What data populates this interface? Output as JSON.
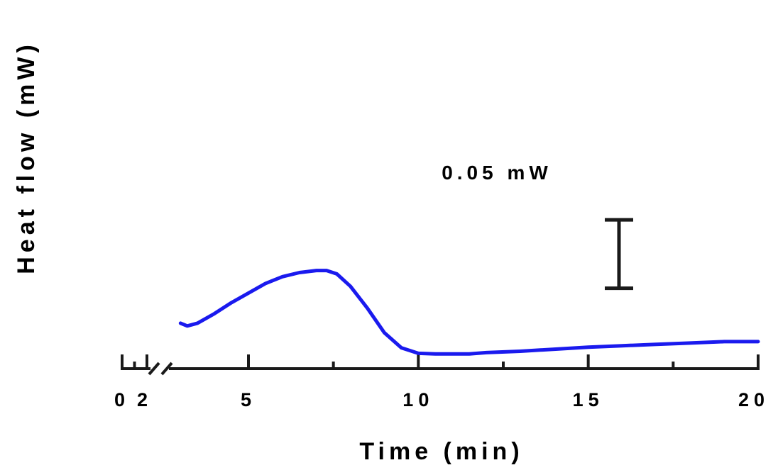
{
  "chart_data": {
    "type": "line",
    "title": "",
    "xlabel": "Time (min)",
    "ylabel": "Heat flow (mW)",
    "x_ticks": [
      {
        "value": 0,
        "label": "0"
      },
      {
        "value": 2,
        "label": "2"
      },
      {
        "value": 5,
        "label": "5"
      },
      {
        "value": 10,
        "label": "10"
      },
      {
        "value": 15,
        "label": "15"
      },
      {
        "value": 20,
        "label": "20"
      }
    ],
    "x_axis_break": [
      2,
      3
    ],
    "xlim": [
      0,
      20
    ],
    "ylim": [
      -0.004,
      0.104
    ],
    "grid": false,
    "legend": "none",
    "scale_bar": {
      "label": "0.05 mW",
      "value": 0.05,
      "from": 0.0525,
      "to": 0.1025
    },
    "series": [
      {
        "color": "#1a1aee",
        "x": [
          3.0,
          3.2,
          3.5,
          4.0,
          4.5,
          5.0,
          5.5,
          6.0,
          6.5,
          7.0,
          7.3,
          7.6,
          8.0,
          8.5,
          9.0,
          9.5,
          10.0,
          10.5,
          11.0,
          11.5,
          12.0,
          13.0,
          14.0,
          15.0,
          16.0,
          17.0,
          18.0,
          19.0,
          20.0
        ],
        "y": [
          0.027,
          0.025,
          0.027,
          0.034,
          0.042,
          0.049,
          0.056,
          0.061,
          0.064,
          0.0655,
          0.0655,
          0.063,
          0.054,
          0.038,
          0.02,
          0.009,
          0.005,
          0.0045,
          0.0045,
          0.0045,
          0.0055,
          0.0065,
          0.008,
          0.0095,
          0.0105,
          0.0115,
          0.0125,
          0.0135,
          0.0135
        ]
      }
    ]
  }
}
